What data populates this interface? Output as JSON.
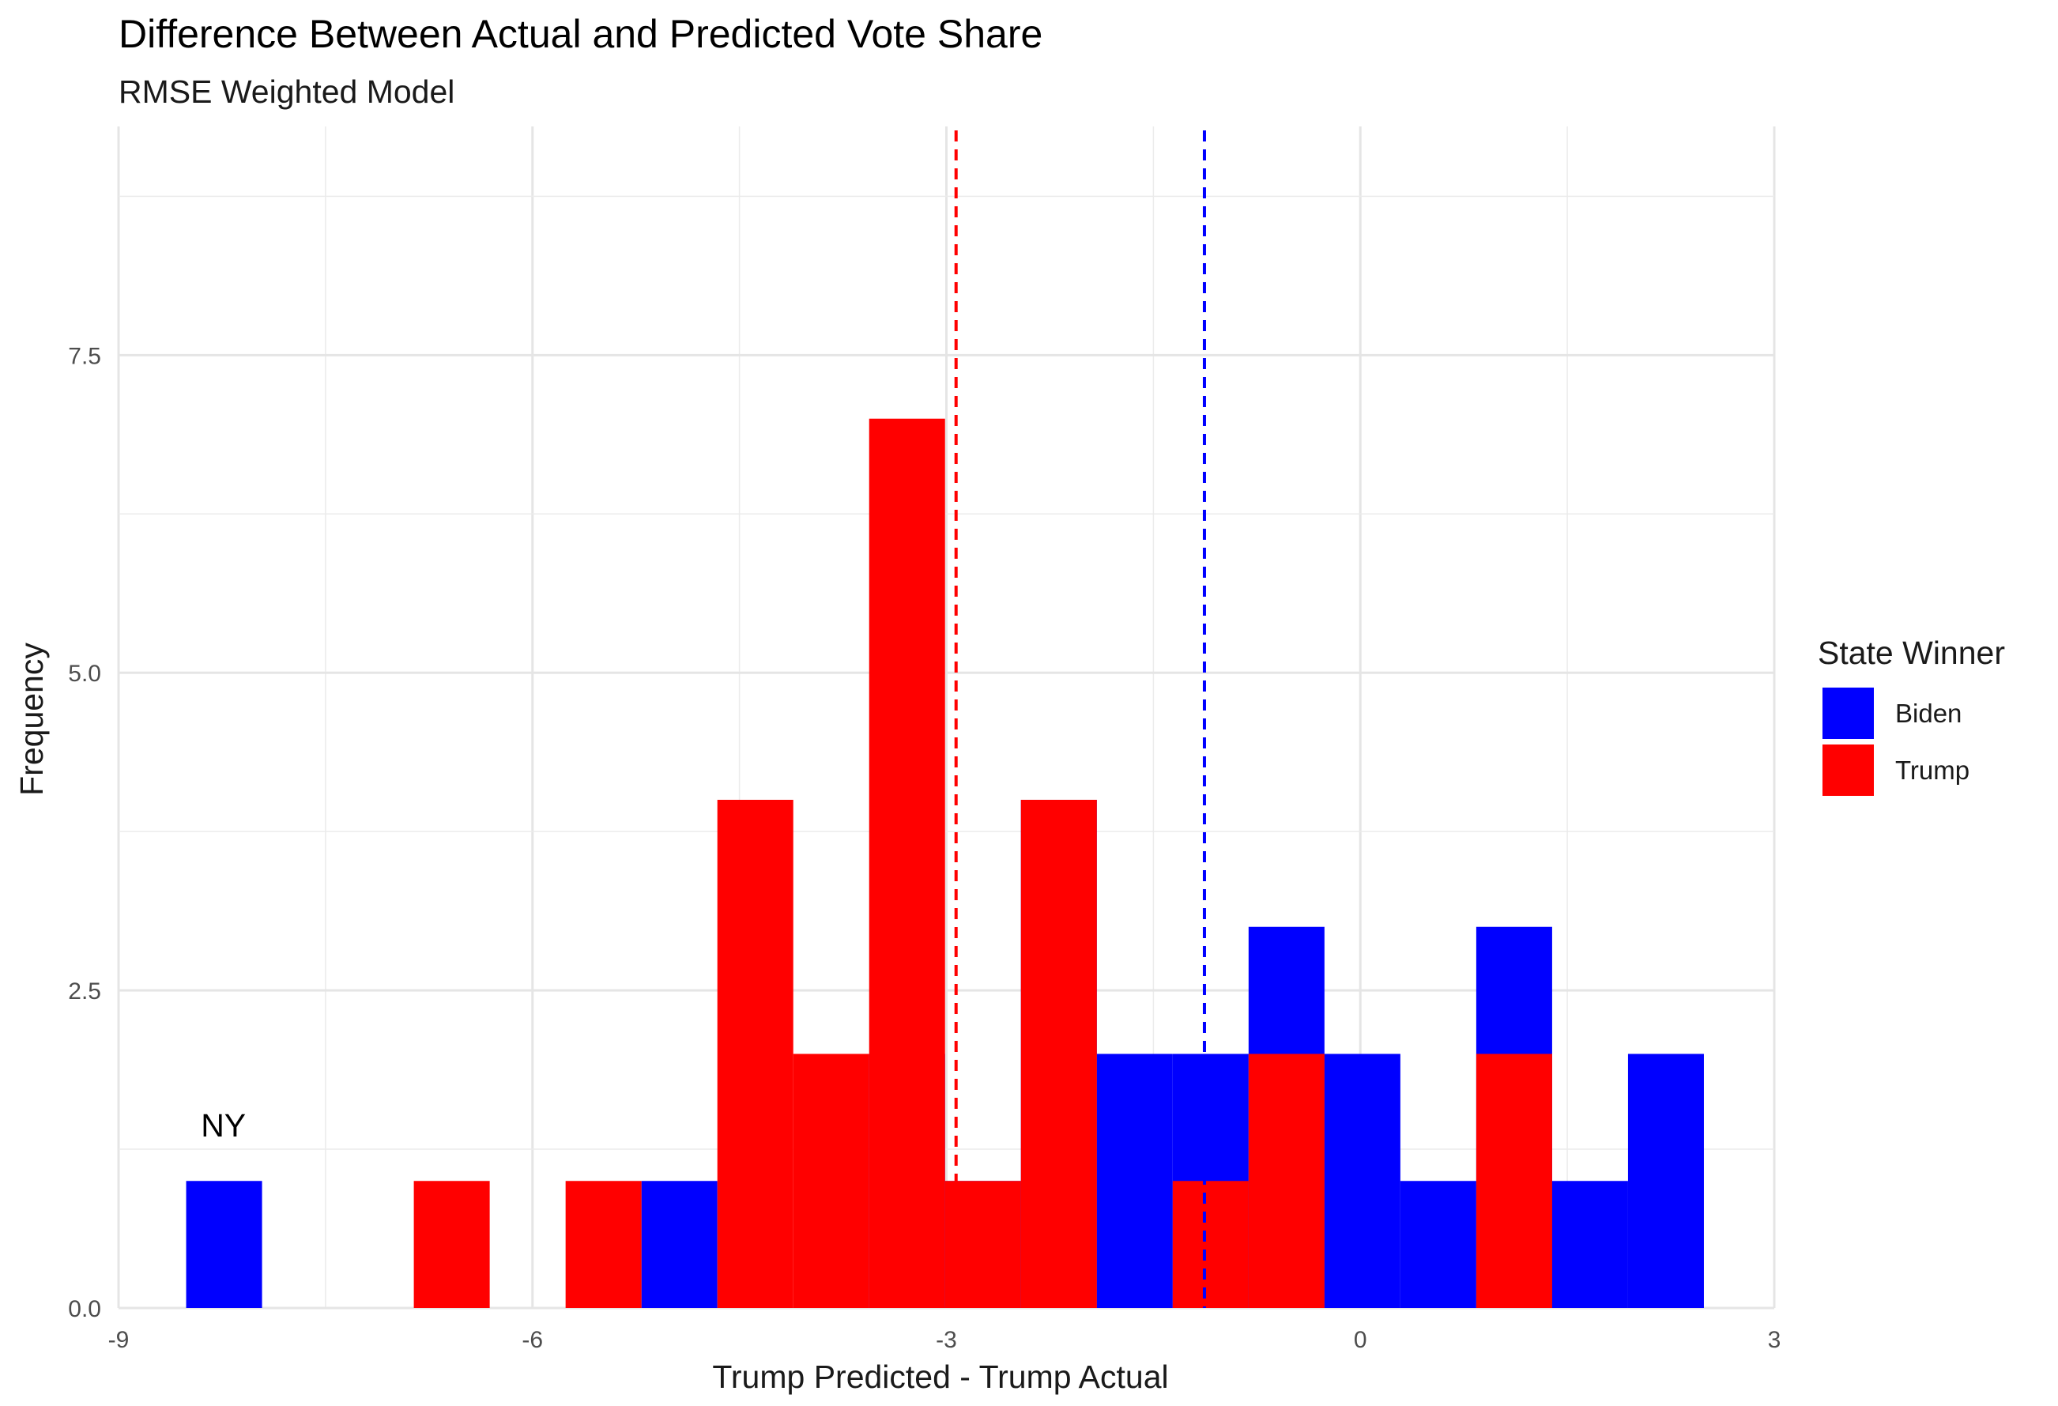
{
  "chart_data": {
    "type": "bar",
    "title": "Difference Between Actual and Predicted Vote Share",
    "subtitle": "RMSE Weighted Model",
    "xlabel": "Trump Predicted - Trump Actual",
    "ylabel": "Frequency",
    "xlim": [
      -9,
      3
    ],
    "ylim": [
      0,
      9.3
    ],
    "x_ticks": [
      "-9",
      "-6",
      "-3",
      "0",
      "3"
    ],
    "y_ticks": [
      "0.0",
      "2.5",
      "5.0",
      "7.5"
    ],
    "grid": true,
    "legend": {
      "title": "State Winner",
      "placement": "right"
    },
    "bin_width": 0.55,
    "series": [
      {
        "name": "Biden",
        "color": "#0000FF",
        "bins": [
          {
            "x0": -8.51,
            "x1": -7.96,
            "count": 1
          },
          {
            "x0": -5.21,
            "x1": -4.66,
            "count": 1
          },
          {
            "x0": -3.56,
            "x1": -3.01,
            "count": 2
          },
          {
            "x0": -3.01,
            "x1": -2.46,
            "count": 1
          },
          {
            "x0": -2.46,
            "x1": -1.91,
            "count": 4
          },
          {
            "x0": -1.91,
            "x1": -1.36,
            "count": 2
          },
          {
            "x0": -1.36,
            "x1": -0.81,
            "count": 2
          },
          {
            "x0": -0.81,
            "x1": -0.26,
            "count": 3
          },
          {
            "x0": -0.26,
            "x1": 0.29,
            "count": 2
          },
          {
            "x0": 0.29,
            "x1": 0.84,
            "count": 1
          },
          {
            "x0": 0.84,
            "x1": 1.39,
            "count": 3
          },
          {
            "x0": 1.39,
            "x1": 1.94,
            "count": 1
          },
          {
            "x0": 1.94,
            "x1": 2.49,
            "count": 2
          }
        ]
      },
      {
        "name": "Trump",
        "color": "#FF0000",
        "bins": [
          {
            "x0": -6.86,
            "x1": -6.31,
            "count": 1
          },
          {
            "x0": -5.76,
            "x1": -5.21,
            "count": 1
          },
          {
            "x0": -4.66,
            "x1": -4.11,
            "count": 4
          },
          {
            "x0": -4.11,
            "x1": -3.56,
            "count": 2
          },
          {
            "x0": -3.56,
            "x1": -3.01,
            "count": 7
          },
          {
            "x0": -3.01,
            "x1": -2.46,
            "count": 1
          },
          {
            "x0": -2.46,
            "x1": -1.91,
            "count": 4
          },
          {
            "x0": -1.36,
            "x1": -0.81,
            "count": 1
          },
          {
            "x0": -0.81,
            "x1": -0.26,
            "count": 2
          },
          {
            "x0": 0.84,
            "x1": 1.39,
            "count": 2
          }
        ]
      }
    ],
    "reference_lines": [
      {
        "series": "Trump",
        "x": -2.93,
        "color": "#FF0000",
        "style": "dashed"
      },
      {
        "series": "Biden",
        "x": -1.13,
        "color": "#0000FF",
        "style": "dashed"
      }
    ],
    "annotations": [
      {
        "text": "NY",
        "x": -8.24,
        "y": 1.35
      }
    ]
  }
}
